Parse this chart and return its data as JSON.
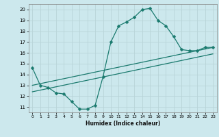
{
  "bg_color": "#cce8ed",
  "grid_color": "#b8d4d8",
  "line_color": "#1a7a6e",
  "xlabel": "Humidex (Indice chaleur)",
  "xlim": [
    -0.5,
    23.5
  ],
  "ylim": [
    10.5,
    20.5
  ],
  "yticks": [
    11,
    12,
    13,
    14,
    15,
    16,
    17,
    18,
    19,
    20
  ],
  "xticks": [
    0,
    1,
    2,
    3,
    4,
    5,
    6,
    7,
    8,
    9,
    10,
    11,
    12,
    13,
    14,
    15,
    16,
    17,
    18,
    19,
    20,
    21,
    22,
    23
  ],
  "zigzag_x": [
    0,
    1,
    2,
    3,
    4,
    5,
    6,
    7,
    8,
    9,
    10,
    11,
    12,
    13,
    14,
    15,
    16,
    17,
    18,
    19,
    20,
    21,
    22,
    23
  ],
  "zigzag_y": [
    14.6,
    13.0,
    12.8,
    12.3,
    12.2,
    11.5,
    10.8,
    10.8,
    11.15,
    13.8,
    17.0,
    18.5,
    18.85,
    19.3,
    20.0,
    20.1,
    19.0,
    18.5,
    17.5,
    16.3,
    16.2,
    16.2,
    16.5,
    16.5
  ],
  "upper_line_x": [
    0,
    23
  ],
  "upper_line_y": [
    13.0,
    16.5
  ],
  "lower_line_x": [
    0,
    23
  ],
  "lower_line_y": [
    12.4,
    15.9
  ],
  "marker_size": 2.5,
  "line_width": 0.9
}
